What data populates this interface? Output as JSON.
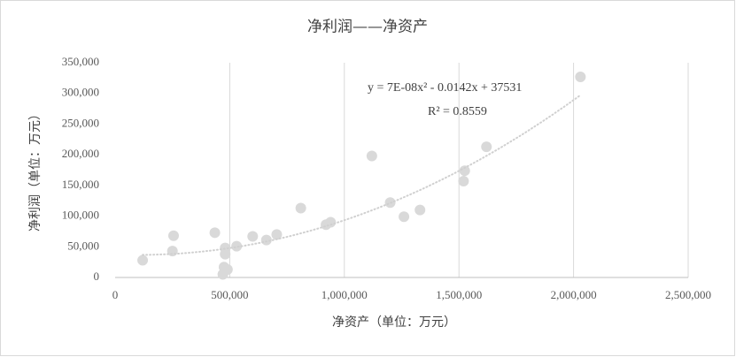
{
  "chart_data": {
    "type": "scatter",
    "title": "净利润——净资产",
    "x_label": "净资产（单位：万元）",
    "y_label": "净利润（单位：万元）",
    "color": "#d9d9d9",
    "x": [
      120000,
      250000,
      255000,
      435000,
      470000,
      475000,
      480000,
      480000,
      490000,
      530000,
      600000,
      660000,
      705000,
      810000,
      920000,
      940000,
      1120000,
      1200000,
      1260000,
      1330000,
      1520000,
      1525000,
      1620000,
      2030000
    ],
    "values": [
      28000,
      43000,
      68000,
      73000,
      5000,
      17000,
      48000,
      38000,
      13000,
      51000,
      67000,
      61000,
      70000,
      113000,
      86000,
      90000,
      198000,
      122000,
      99000,
      110000,
      157000,
      174000,
      213000,
      327000
    ],
    "xlim": [
      0,
      2500000
    ],
    "xticks": [
      0,
      {
        "value": 500000,
        "label": "500,000"
      },
      {
        "value": 1000000,
        "label": "1,000,000"
      },
      {
        "value": 1500000,
        "label": "1,500,000"
      },
      {
        "value": 2000000,
        "label": "2,000,000"
      },
      {
        "value": 2500000,
        "label": "2,500,000"
      }
    ],
    "ylim": [
      0,
      350000
    ],
    "yticks": [
      0,
      {
        "value": 50000,
        "label": "50,000"
      },
      {
        "value": 100000,
        "label": "100,000"
      },
      {
        "value": 150000,
        "label": "150,000"
      },
      {
        "value": 200000,
        "label": "200,000"
      },
      {
        "value": 250000,
        "label": "250,000"
      },
      {
        "value": 300000,
        "label": "300,000"
      },
      {
        "value": 350000,
        "label": "350,000"
      }
    ],
    "grid": "x",
    "trendline": {
      "equation": "y = 7E-08x² - 0.0142x + 37531",
      "r_squared": "R² = 0.8559",
      "coefficients": [
        7e-08,
        -0.0142,
        37531
      ],
      "color": "#d0d0d0"
    }
  }
}
